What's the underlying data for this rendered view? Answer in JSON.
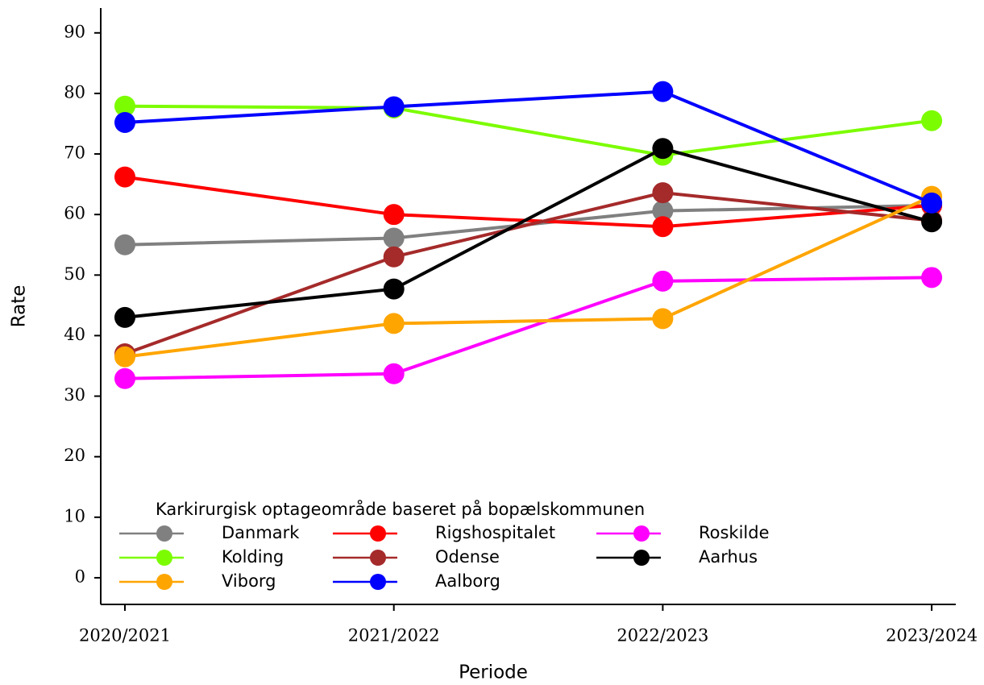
{
  "chart_data": {
    "type": "line",
    "x_label": "Periode",
    "y_label": "Rate",
    "categories": [
      "2020/2021",
      "2021/2022",
      "2022/2023",
      "2023/2024"
    ],
    "ylim": [
      -4.4,
      94.1
    ],
    "yticks": [
      0,
      10,
      20,
      30,
      40,
      50,
      60,
      70,
      80,
      90
    ],
    "legend_title": "Karkirurgisk optageområde baseret på bopælskommunen",
    "legend_position": "lower left",
    "series": [
      {
        "name": "Danmark",
        "color": "#808080",
        "values": [
          55,
          56.1,
          60.6,
          61.5
        ]
      },
      {
        "name": "Rigshospitalet",
        "color": "#ff0000",
        "values": [
          66.2,
          60,
          58,
          61.5
        ]
      },
      {
        "name": "Roskilde",
        "color": "#ff00ff",
        "values": [
          32.9,
          33.7,
          49,
          49.6
        ]
      },
      {
        "name": "Kolding",
        "color": "#7cfc00",
        "values": [
          77.9,
          77.6,
          69.8,
          75.5
        ]
      },
      {
        "name": "Odense",
        "color": "#a52a2a",
        "values": [
          37,
          53,
          63.6,
          59
        ]
      },
      {
        "name": "Aarhus",
        "color": "#000000",
        "values": [
          43,
          47.7,
          70.9,
          58.8
        ]
      },
      {
        "name": "Viborg",
        "color": "#ffa500",
        "values": [
          36.5,
          42,
          42.8,
          63
        ]
      },
      {
        "name": "Aalborg",
        "color": "#0000ff",
        "values": [
          75.2,
          77.8,
          80.3,
          61.9
        ]
      }
    ]
  }
}
